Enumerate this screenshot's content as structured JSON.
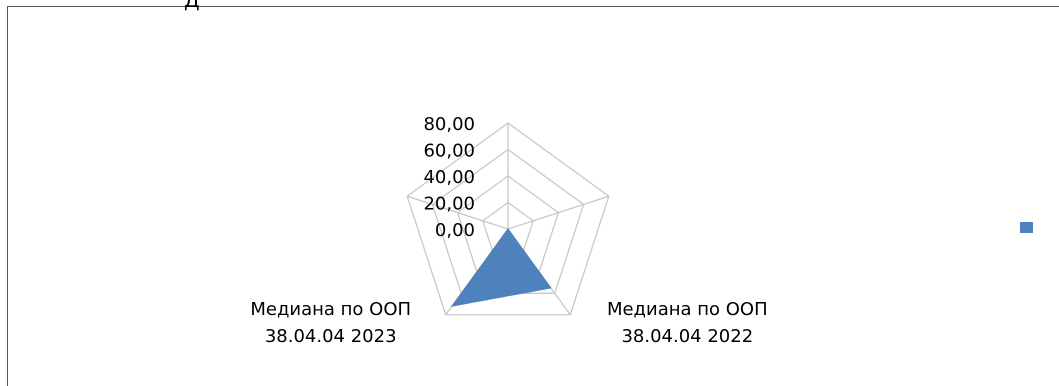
{
  "top_fragment": "Д",
  "chart_data": {
    "type": "radar",
    "title": "",
    "axes": [
      "",
      "",
      "Медиана по ООП\n38.04.04 2022",
      "Медиана по ООП\n38.04.04 2023",
      ""
    ],
    "rmin": 0,
    "rmax": 80,
    "ticks": [
      "0,00",
      "20,00",
      "40,00",
      "60,00",
      "80,00"
    ],
    "series": [
      {
        "name": "",
        "color": "#4f81bd",
        "values": [
          0,
          0,
          55,
          72,
          0
        ]
      }
    ],
    "legend": "right",
    "grid": true
  }
}
